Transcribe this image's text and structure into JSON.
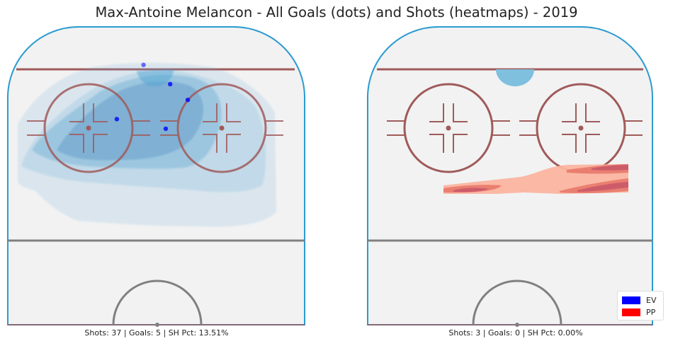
{
  "title": "Max-Antoine Melancon - All Goals (dots) and Shots (heatmaps) - 2019",
  "colors": {
    "ev": "#0000ff",
    "pp": "#ff0000",
    "ev_heat": "#6baed6",
    "pp_heat": "#de2d26",
    "rink_border": "#2b9bd0",
    "red_line": "#a05a5a",
    "blue_line": "#808080",
    "ice": "#f2f2f2"
  },
  "chart_data": [
    {
      "type": "heatmap",
      "panel": "left",
      "strength": "EV",
      "caption": "Shots: 37 | Goals: 5 | SH Pct: 13.51%",
      "stats": {
        "shots": 37,
        "goals": 5,
        "sh_pct": 13.51
      },
      "goals": [
        {
          "x": -33,
          "y": 75
        },
        {
          "x": -15,
          "y": 61
        },
        {
          "x": -40,
          "y": 53
        },
        {
          "x": -23,
          "y": 50
        },
        {
          "x": -13,
          "y": 43
        }
      ]
    },
    {
      "type": "heatmap",
      "panel": "right",
      "strength": "PP",
      "caption": "Shots: 3 | Goals: 0 | SH Pct: 0.00%",
      "stats": {
        "shots": 3,
        "goals": 0,
        "sh_pct": 0.0
      },
      "goals": []
    }
  ],
  "legend": [
    {
      "label": "EV",
      "color": "#0000ff"
    },
    {
      "label": "PP",
      "color": "#ff0000"
    }
  ]
}
